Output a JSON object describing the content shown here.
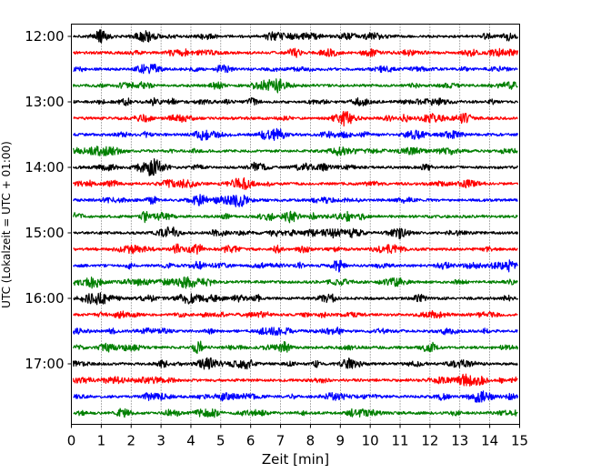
{
  "chart_data": {
    "type": "line",
    "title": "",
    "xlabel": "Zeit  [min]",
    "ylabel": "UTC (Lokalzeit = UTC + 01:00)",
    "xlim": [
      0,
      15
    ],
    "x_ticks": [
      "0",
      "1",
      "2",
      "3",
      "4",
      "5",
      "6",
      "7",
      "8",
      "9",
      "10",
      "11",
      "12",
      "13",
      "14",
      "15"
    ],
    "y_ticks": [
      "12:00",
      "13:00",
      "14:00",
      "15:00",
      "16:00",
      "17:00"
    ],
    "trace_start": "12:00",
    "trace_interval_min": 15,
    "trace_count": 24,
    "trace_colors": [
      "#000000",
      "#ff0000",
      "#0000ff",
      "#007f00"
    ],
    "grid": "vertical dotted"
  }
}
